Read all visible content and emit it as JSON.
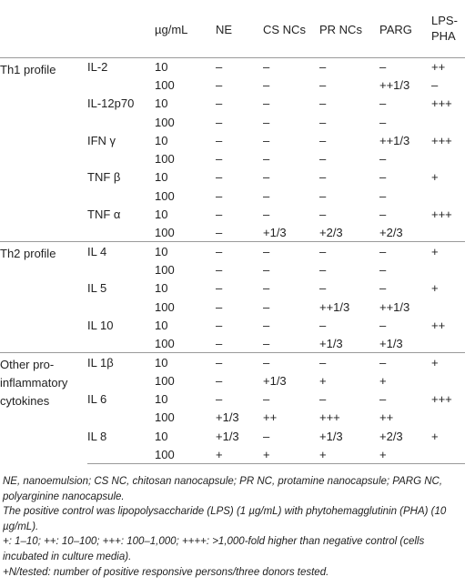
{
  "header": {
    "c0": "",
    "c1": "",
    "c2": "µg/mL",
    "c3": "NE",
    "c4": "CS NCs",
    "c5": "PR NCs",
    "c6": "PARG",
    "c7a": "LPS-",
    "c7b": "PHA"
  },
  "rows": [
    [
      "Th1 profile",
      "IL-2",
      "10",
      "–",
      "–",
      "–",
      "–",
      "++"
    ],
    [
      "",
      "",
      "100",
      "–",
      "–",
      "–",
      "++1/3",
      "–"
    ],
    [
      "",
      "IL-12p70",
      "10",
      "–",
      "–",
      "–",
      "–",
      "+++"
    ],
    [
      "",
      "",
      "100",
      "–",
      "–",
      "–",
      "–",
      ""
    ],
    [
      "",
      "IFN γ",
      "10",
      "–",
      "–",
      "–",
      "++1/3",
      "+++"
    ],
    [
      "",
      "",
      "100",
      "–",
      "–",
      "–",
      "–",
      ""
    ],
    [
      "",
      "TNF β",
      "10",
      "–",
      "–",
      "–",
      "–",
      "+"
    ],
    [
      "",
      "",
      "100",
      "–",
      "–",
      "–",
      "–",
      ""
    ],
    [
      "",
      "TNF α",
      "10",
      "–",
      "–",
      "–",
      "–",
      "+++"
    ],
    [
      "",
      "",
      "100",
      "–",
      "+1/3",
      "+2/3",
      "+2/3",
      ""
    ],
    [
      "Th2 profile",
      "IL 4",
      "10",
      "–",
      "–",
      "–",
      "–",
      "+"
    ],
    [
      "",
      "",
      "100",
      "–",
      "–",
      "–",
      "–",
      ""
    ],
    [
      "",
      "IL 5",
      "10",
      "–",
      "–",
      "–",
      "–",
      "+"
    ],
    [
      "",
      "",
      "100",
      "–",
      "–",
      "++1/3",
      "++1/3",
      ""
    ],
    [
      "",
      "IL 10",
      "10",
      "–",
      "–",
      "–",
      "–",
      "++"
    ],
    [
      "",
      "",
      "100",
      "–",
      "–",
      "+1/3",
      "+1/3",
      ""
    ],
    [
      "Other pro-inflammatory cytokines",
      "IL 1β",
      "10",
      "–",
      "–",
      "–",
      "–",
      "+"
    ],
    [
      "",
      "",
      "100",
      "–",
      "+1/3",
      "+",
      "+",
      ""
    ],
    [
      "",
      "IL 6",
      "10",
      "–",
      "–",
      "–",
      "–",
      "+++"
    ],
    [
      "",
      "",
      "100",
      "+1/3",
      "++",
      "+++",
      "++",
      ""
    ],
    [
      "",
      "IL 8",
      "10",
      "+1/3",
      "–",
      "+1/3",
      "+2/3",
      "+"
    ],
    [
      "",
      "",
      "100",
      "+",
      "+",
      "+",
      "+",
      ""
    ]
  ],
  "notes": [
    "NE, nanoemulsion; CS NC, chitosan nanocapsule; PR NC, protamine nanocapsule; PARG NC, polyarginine nanocapsule.",
    "The positive control was lipopolysaccharide (LPS) (1 µg/mL) with phytohemagglutinin (PHA) (10 µg/mL).",
    "+: 1–10; ++: 10–100; +++: 100–1,000; ++++: >1,000-fold higher than negative control (cells incubated in culture media).",
    "+N/tested: number of positive responsive persons/three donors tested."
  ]
}
